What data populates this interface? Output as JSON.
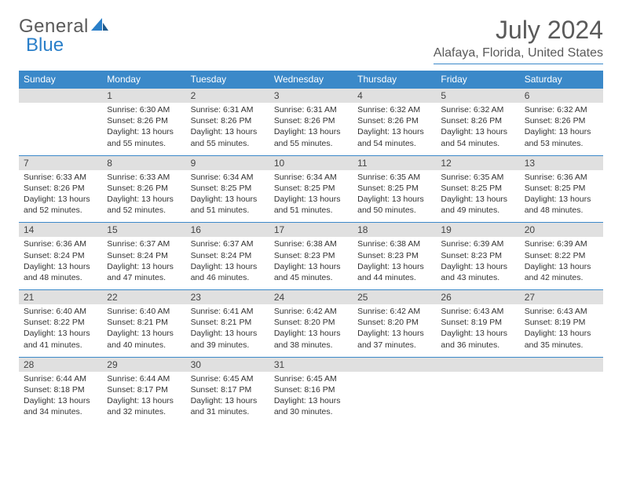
{
  "logo": {
    "text1": "General",
    "text2": "Blue"
  },
  "title": "July 2024",
  "location": "Alafaya, Florida, United States",
  "colors": {
    "header_bg": "#3b89c9",
    "header_fg": "#ffffff",
    "daynum_bg": "#e0e0e0",
    "text": "#333333",
    "title": "#5a5a5a",
    "rule": "#3b89c9"
  },
  "day_labels": [
    "Sunday",
    "Monday",
    "Tuesday",
    "Wednesday",
    "Thursday",
    "Friday",
    "Saturday"
  ],
  "weeks": [
    {
      "nums": [
        "",
        "1",
        "2",
        "3",
        "4",
        "5",
        "6"
      ],
      "cells": [
        null,
        {
          "sr": "Sunrise: 6:30 AM",
          "ss": "Sunset: 8:26 PM",
          "d1": "Daylight: 13 hours",
          "d2": "and 55 minutes."
        },
        {
          "sr": "Sunrise: 6:31 AM",
          "ss": "Sunset: 8:26 PM",
          "d1": "Daylight: 13 hours",
          "d2": "and 55 minutes."
        },
        {
          "sr": "Sunrise: 6:31 AM",
          "ss": "Sunset: 8:26 PM",
          "d1": "Daylight: 13 hours",
          "d2": "and 55 minutes."
        },
        {
          "sr": "Sunrise: 6:32 AM",
          "ss": "Sunset: 8:26 PM",
          "d1": "Daylight: 13 hours",
          "d2": "and 54 minutes."
        },
        {
          "sr": "Sunrise: 6:32 AM",
          "ss": "Sunset: 8:26 PM",
          "d1": "Daylight: 13 hours",
          "d2": "and 54 minutes."
        },
        {
          "sr": "Sunrise: 6:32 AM",
          "ss": "Sunset: 8:26 PM",
          "d1": "Daylight: 13 hours",
          "d2": "and 53 minutes."
        }
      ]
    },
    {
      "nums": [
        "7",
        "8",
        "9",
        "10",
        "11",
        "12",
        "13"
      ],
      "cells": [
        {
          "sr": "Sunrise: 6:33 AM",
          "ss": "Sunset: 8:26 PM",
          "d1": "Daylight: 13 hours",
          "d2": "and 52 minutes."
        },
        {
          "sr": "Sunrise: 6:33 AM",
          "ss": "Sunset: 8:26 PM",
          "d1": "Daylight: 13 hours",
          "d2": "and 52 minutes."
        },
        {
          "sr": "Sunrise: 6:34 AM",
          "ss": "Sunset: 8:25 PM",
          "d1": "Daylight: 13 hours",
          "d2": "and 51 minutes."
        },
        {
          "sr": "Sunrise: 6:34 AM",
          "ss": "Sunset: 8:25 PM",
          "d1": "Daylight: 13 hours",
          "d2": "and 51 minutes."
        },
        {
          "sr": "Sunrise: 6:35 AM",
          "ss": "Sunset: 8:25 PM",
          "d1": "Daylight: 13 hours",
          "d2": "and 50 minutes."
        },
        {
          "sr": "Sunrise: 6:35 AM",
          "ss": "Sunset: 8:25 PM",
          "d1": "Daylight: 13 hours",
          "d2": "and 49 minutes."
        },
        {
          "sr": "Sunrise: 6:36 AM",
          "ss": "Sunset: 8:25 PM",
          "d1": "Daylight: 13 hours",
          "d2": "and 48 minutes."
        }
      ]
    },
    {
      "nums": [
        "14",
        "15",
        "16",
        "17",
        "18",
        "19",
        "20"
      ],
      "cells": [
        {
          "sr": "Sunrise: 6:36 AM",
          "ss": "Sunset: 8:24 PM",
          "d1": "Daylight: 13 hours",
          "d2": "and 48 minutes."
        },
        {
          "sr": "Sunrise: 6:37 AM",
          "ss": "Sunset: 8:24 PM",
          "d1": "Daylight: 13 hours",
          "d2": "and 47 minutes."
        },
        {
          "sr": "Sunrise: 6:37 AM",
          "ss": "Sunset: 8:24 PM",
          "d1": "Daylight: 13 hours",
          "d2": "and 46 minutes."
        },
        {
          "sr": "Sunrise: 6:38 AM",
          "ss": "Sunset: 8:23 PM",
          "d1": "Daylight: 13 hours",
          "d2": "and 45 minutes."
        },
        {
          "sr": "Sunrise: 6:38 AM",
          "ss": "Sunset: 8:23 PM",
          "d1": "Daylight: 13 hours",
          "d2": "and 44 minutes."
        },
        {
          "sr": "Sunrise: 6:39 AM",
          "ss": "Sunset: 8:23 PM",
          "d1": "Daylight: 13 hours",
          "d2": "and 43 minutes."
        },
        {
          "sr": "Sunrise: 6:39 AM",
          "ss": "Sunset: 8:22 PM",
          "d1": "Daylight: 13 hours",
          "d2": "and 42 minutes."
        }
      ]
    },
    {
      "nums": [
        "21",
        "22",
        "23",
        "24",
        "25",
        "26",
        "27"
      ],
      "cells": [
        {
          "sr": "Sunrise: 6:40 AM",
          "ss": "Sunset: 8:22 PM",
          "d1": "Daylight: 13 hours",
          "d2": "and 41 minutes."
        },
        {
          "sr": "Sunrise: 6:40 AM",
          "ss": "Sunset: 8:21 PM",
          "d1": "Daylight: 13 hours",
          "d2": "and 40 minutes."
        },
        {
          "sr": "Sunrise: 6:41 AM",
          "ss": "Sunset: 8:21 PM",
          "d1": "Daylight: 13 hours",
          "d2": "and 39 minutes."
        },
        {
          "sr": "Sunrise: 6:42 AM",
          "ss": "Sunset: 8:20 PM",
          "d1": "Daylight: 13 hours",
          "d2": "and 38 minutes."
        },
        {
          "sr": "Sunrise: 6:42 AM",
          "ss": "Sunset: 8:20 PM",
          "d1": "Daylight: 13 hours",
          "d2": "and 37 minutes."
        },
        {
          "sr": "Sunrise: 6:43 AM",
          "ss": "Sunset: 8:19 PM",
          "d1": "Daylight: 13 hours",
          "d2": "and 36 minutes."
        },
        {
          "sr": "Sunrise: 6:43 AM",
          "ss": "Sunset: 8:19 PM",
          "d1": "Daylight: 13 hours",
          "d2": "and 35 minutes."
        }
      ]
    },
    {
      "nums": [
        "28",
        "29",
        "30",
        "31",
        "",
        "",
        ""
      ],
      "cells": [
        {
          "sr": "Sunrise: 6:44 AM",
          "ss": "Sunset: 8:18 PM",
          "d1": "Daylight: 13 hours",
          "d2": "and 34 minutes."
        },
        {
          "sr": "Sunrise: 6:44 AM",
          "ss": "Sunset: 8:17 PM",
          "d1": "Daylight: 13 hours",
          "d2": "and 32 minutes."
        },
        {
          "sr": "Sunrise: 6:45 AM",
          "ss": "Sunset: 8:17 PM",
          "d1": "Daylight: 13 hours",
          "d2": "and 31 minutes."
        },
        {
          "sr": "Sunrise: 6:45 AM",
          "ss": "Sunset: 8:16 PM",
          "d1": "Daylight: 13 hours",
          "d2": "and 30 minutes."
        },
        null,
        null,
        null
      ]
    }
  ]
}
